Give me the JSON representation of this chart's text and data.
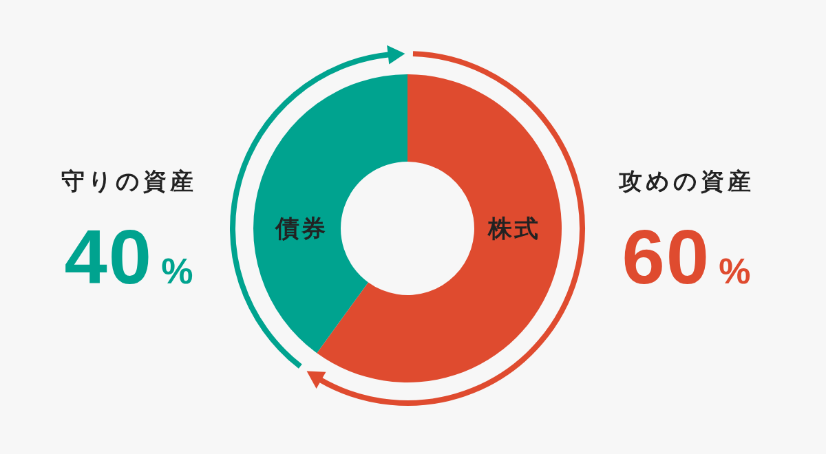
{
  "chart_data": {
    "type": "donut",
    "categories": [
      "株式",
      "債券"
    ],
    "values": [
      60,
      40
    ],
    "colors": [
      "#df4b2f",
      "#00a38f"
    ],
    "value_labels": [
      "60%",
      "40%"
    ],
    "annotations": [
      "攻めの資産",
      "守りの資産"
    ]
  }
}
